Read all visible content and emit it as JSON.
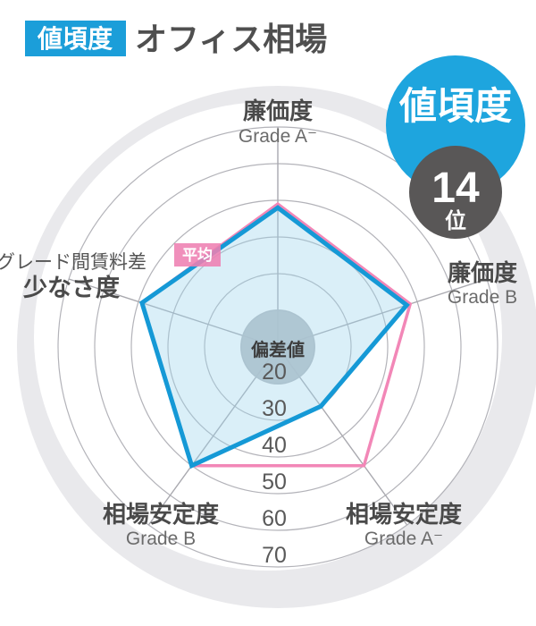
{
  "header": {
    "category_badge": "値頃度",
    "title": "オフィス相場"
  },
  "rank_badge": {
    "label": "値頃度",
    "rank": "14",
    "rank_suffix": "位"
  },
  "colors": {
    "brand_blue": "#1b9ed9",
    "score_line": "#1599d6",
    "average_line": "#f287b7",
    "badge_gray": "#595757"
  },
  "chart_data": {
    "type": "radar",
    "center_label": "偏差値",
    "ticks": [
      20,
      30,
      40,
      50,
      60,
      70
    ],
    "scale_center_value": 10,
    "axes": [
      {
        "label": "廉価度",
        "sublabel": "Grade A⁻"
      },
      {
        "label": "廉価度",
        "sublabel": "Grade B"
      },
      {
        "label": "相場安定度",
        "sublabel": "Grade A⁻"
      },
      {
        "label": "相場安定度",
        "sublabel": "Grade B"
      },
      {
        "label": "グレード間賃料差",
        "sublabel": "少なさ度"
      }
    ],
    "series": [
      {
        "name": "score",
        "values": [
          48,
          47,
          30,
          50,
          49
        ],
        "stroke": "#1599d6",
        "fill": "rgba(158,212,236,0.38)"
      },
      {
        "name": "average",
        "legend": "平均",
        "values": [
          49,
          48,
          50,
          50,
          49
        ],
        "stroke": "#f287b7",
        "fill": "none"
      }
    ]
  }
}
